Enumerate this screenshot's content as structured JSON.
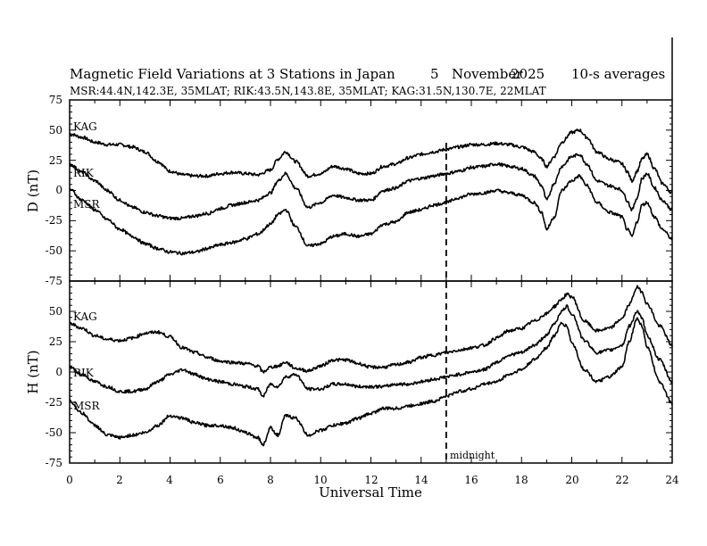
{
  "chart_data": {
    "type": "line",
    "title": "Magnetic Field Variations at 3 Stations in Japan",
    "day": "5",
    "month": "November",
    "year": "2025",
    "averaging": "10-s averages",
    "stations_info": "MSR:44.4N,142.3E, 35MLAT;  RIK:43.5N,143.8E, 35MLAT;  KAG:31.5N,130.7E, 22MLAT",
    "xlabel": "Universal Time",
    "xlim": [
      0,
      24
    ],
    "xticks": [
      "0",
      "2",
      "4",
      "6",
      "8",
      "10",
      "12",
      "14",
      "16",
      "18",
      "20",
      "22",
      "24"
    ],
    "midnight_marker": {
      "x": 15,
      "label": "midnight"
    },
    "panels": [
      {
        "ylabel": "D (nT)",
        "ylim": [
          -75,
          75
        ],
        "yticks": [
          "75",
          "50",
          "25",
          "0",
          "-25",
          "-50",
          "-75"
        ],
        "series": [
          {
            "name": "KAG",
            "x": [
              0,
              0.5,
              1,
              1.5,
              2,
              2.5,
              3,
              3.5,
              4,
              4.5,
              5,
              5.5,
              6,
              6.5,
              7,
              7.5,
              8,
              8.3,
              8.6,
              9,
              9.5,
              10,
              10.5,
              11,
              11.5,
              12,
              12.5,
              13,
              13.5,
              14,
              14.5,
              15,
              15.5,
              16,
              16.5,
              17,
              17.5,
              18,
              18.5,
              18.8,
              19,
              19.3,
              19.6,
              20,
              20.3,
              20.6,
              21,
              21.5,
              21.8,
              22,
              22.2,
              22.4,
              22.6,
              22.8,
              23,
              23.3,
              23.6,
              24
            ],
            "values": [
              47,
              44,
              40,
              38,
              38,
              36,
              32,
              24,
              16,
              13,
              12,
              12,
              14,
              15,
              14,
              13,
              17,
              26,
              32,
              24,
              12,
              14,
              20,
              18,
              14,
              14,
              20,
              22,
              27,
              30,
              32,
              34,
              36,
              38,
              38,
              39,
              38,
              36,
              32,
              26,
              20,
              28,
              40,
              48,
              50,
              44,
              32,
              26,
              24,
              22,
              16,
              8,
              16,
              26,
              30,
              18,
              6,
              -2
            ]
          },
          {
            "name": "RIK",
            "x": [
              0,
              0.5,
              1,
              1.5,
              2,
              2.5,
              3,
              3.5,
              4,
              4.5,
              5,
              5.5,
              6,
              6.5,
              7,
              7.5,
              8,
              8.3,
              8.6,
              9,
              9.5,
              10,
              10.5,
              11,
              11.5,
              12,
              12.5,
              13,
              13.5,
              14,
              14.5,
              15,
              15.5,
              16,
              16.5,
              17,
              17.5,
              18,
              18.5,
              18.8,
              19,
              19.3,
              19.6,
              20,
              20.3,
              20.6,
              21,
              21.5,
              21.8,
              22,
              22.2,
              22.4,
              22.6,
              22.8,
              23,
              23.3,
              23.6,
              24
            ],
            "values": [
              22,
              15,
              8,
              0,
              -8,
              -14,
              -18,
              -21,
              -23,
              -23,
              -21,
              -19,
              -15,
              -12,
              -10,
              -8,
              -2,
              8,
              14,
              2,
              -14,
              -10,
              -4,
              -6,
              -8,
              -8,
              0,
              2,
              8,
              10,
              12,
              14,
              16,
              19,
              20,
              22,
              20,
              18,
              12,
              4,
              -8,
              6,
              20,
              28,
              30,
              22,
              8,
              4,
              2,
              0,
              -8,
              -16,
              -6,
              10,
              14,
              2,
              -8,
              -16
            ]
          },
          {
            "name": "MSR",
            "x": [
              0,
              0.5,
              1,
              1.5,
              2,
              2.5,
              3,
              3.5,
              4,
              4.5,
              5,
              5.5,
              6,
              6.5,
              7,
              7.5,
              8,
              8.3,
              8.6,
              9,
              9.5,
              10,
              10.5,
              11,
              11.5,
              12,
              12.5,
              13,
              13.5,
              14,
              14.5,
              15,
              15.5,
              16,
              16.5,
              17,
              17.5,
              18,
              18.5,
              18.8,
              19,
              19.3,
              19.6,
              20,
              20.3,
              20.6,
              21,
              21.5,
              21.8,
              22,
              22.2,
              22.4,
              22.6,
              22.8,
              23,
              23.3,
              23.6,
              24
            ],
            "values": [
              1,
              -8,
              -16,
              -24,
              -32,
              -38,
              -44,
              -48,
              -51,
              -52,
              -51,
              -48,
              -45,
              -43,
              -40,
              -36,
              -28,
              -20,
              -16,
              -30,
              -46,
              -44,
              -38,
              -36,
              -38,
              -36,
              -28,
              -26,
              -18,
              -16,
              -12,
              -10,
              -6,
              -3,
              -2,
              0,
              -2,
              -4,
              -10,
              -18,
              -32,
              -22,
              0,
              8,
              12,
              4,
              -10,
              -18,
              -20,
              -22,
              -32,
              -38,
              -26,
              -12,
              -10,
              -22,
              -32,
              -40
            ]
          }
        ]
      },
      {
        "ylabel": "H (nT)",
        "ylim": [
          -75,
          75
        ],
        "yticks": [
          "50",
          "25",
          "0",
          "-25",
          "-50",
          "-75"
        ],
        "series": [
          {
            "name": "KAG",
            "x": [
              0,
              0.5,
              1,
              1.5,
              2,
              2.5,
              3,
              3.5,
              4,
              4.5,
              5,
              5.5,
              6,
              6.5,
              7,
              7.5,
              7.7,
              8,
              8.3,
              8.6,
              9,
              9.5,
              10,
              10.5,
              11,
              11.5,
              12,
              12.5,
              13,
              13.5,
              14,
              14.5,
              15,
              15.5,
              16,
              16.5,
              17,
              17.5,
              18,
              18.5,
              19,
              19.3,
              19.6,
              19.8,
              20,
              20.5,
              21,
              21.5,
              22,
              22.3,
              22.6,
              22.8,
              23,
              23.5,
              24
            ],
            "values": [
              40,
              36,
              30,
              27,
              26,
              28,
              32,
              33,
              29,
              20,
              16,
              12,
              9,
              8,
              7,
              5,
              0,
              4,
              5,
              8,
              3,
              1,
              5,
              10,
              10,
              7,
              4,
              4,
              6,
              8,
              12,
              14,
              16,
              18,
              20,
              22,
              28,
              34,
              36,
              42,
              48,
              54,
              60,
              64,
              62,
              42,
              34,
              36,
              44,
              56,
              70,
              66,
              56,
              38,
              22
            ]
          },
          {
            "name": "RIK",
            "x": [
              0,
              0.5,
              1,
              1.5,
              2,
              2.5,
              3,
              3.5,
              4,
              4.5,
              5,
              5.5,
              6,
              6.5,
              7,
              7.5,
              7.7,
              8,
              8.3,
              8.6,
              9,
              9.5,
              10,
              10.5,
              11,
              11.5,
              12,
              12.5,
              13,
              13.5,
              14,
              14.5,
              15,
              15.5,
              16,
              16.5,
              17,
              17.5,
              18,
              18.5,
              19,
              19.3,
              19.6,
              19.8,
              20,
              20.5,
              21,
              21.5,
              22,
              22.3,
              22.6,
              22.8,
              23,
              23.5,
              24
            ],
            "values": [
              4,
              -2,
              -8,
              -12,
              -16,
              -16,
              -14,
              -8,
              -2,
              2,
              -2,
              -6,
              -8,
              -10,
              -12,
              -14,
              -20,
              -10,
              -12,
              -4,
              -2,
              -14,
              -14,
              -10,
              -10,
              -12,
              -12,
              -12,
              -10,
              -10,
              -8,
              -6,
              -4,
              -2,
              0,
              2,
              8,
              14,
              16,
              22,
              30,
              40,
              50,
              54,
              48,
              26,
              16,
              18,
              22,
              38,
              50,
              44,
              30,
              10,
              -8
            ]
          },
          {
            "name": "MSR",
            "x": [
              0,
              0.5,
              1,
              1.5,
              2,
              2.5,
              3,
              3.5,
              4,
              4.5,
              5,
              5.5,
              6,
              6.5,
              7,
              7.5,
              7.7,
              8,
              8.3,
              8.6,
              9,
              9.5,
              10,
              10.5,
              11,
              11.5,
              12,
              12.5,
              13,
              13.5,
              14,
              14.5,
              15,
              15.5,
              16,
              16.5,
              17,
              17.5,
              18,
              18.5,
              19,
              19.3,
              19.6,
              19.8,
              20,
              20.5,
              21,
              21.5,
              22,
              22.3,
              22.6,
              22.8,
              23,
              23.5,
              24
            ],
            "values": [
              -24,
              -34,
              -44,
              -52,
              -54,
              -52,
              -50,
              -44,
              -36,
              -38,
              -42,
              -44,
              -44,
              -46,
              -50,
              -54,
              -60,
              -46,
              -52,
              -36,
              -38,
              -52,
              -48,
              -44,
              -42,
              -38,
              -34,
              -30,
              -30,
              -28,
              -26,
              -24,
              -20,
              -16,
              -14,
              -10,
              -8,
              -2,
              2,
              10,
              20,
              30,
              40,
              38,
              24,
              2,
              -8,
              -4,
              4,
              26,
              44,
              38,
              20,
              -8,
              -26
            ]
          }
        ]
      }
    ]
  }
}
